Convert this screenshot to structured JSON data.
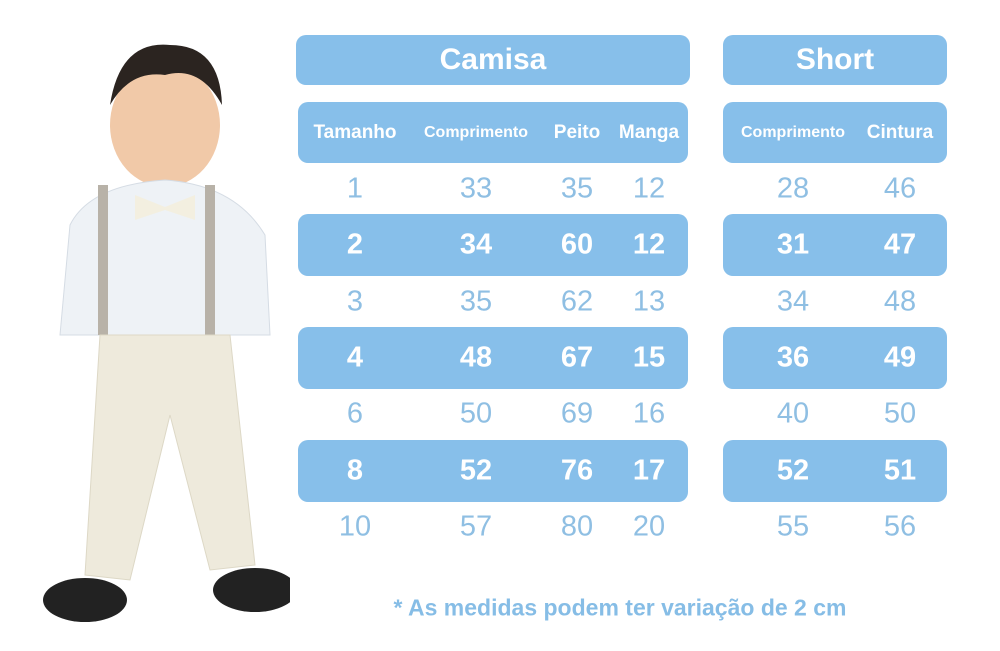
{
  "colors": {
    "accent": "#87bfea",
    "text_light": "#8fbfe3",
    "white": "#ffffff"
  },
  "camisa": {
    "title": "Camisa",
    "headers": [
      "Tamanho",
      "Comprimento",
      "Peito",
      "Manga"
    ],
    "rows": [
      [
        "1",
        "33",
        "35",
        "12"
      ],
      [
        "2",
        "34",
        "60",
        "12"
      ],
      [
        "3",
        "35",
        "62",
        "13"
      ],
      [
        "4",
        "48",
        "67",
        "15"
      ],
      [
        "6",
        "50",
        "69",
        "16"
      ],
      [
        "8",
        "52",
        "76",
        "17"
      ],
      [
        "10",
        "57",
        "80",
        "20"
      ]
    ]
  },
  "short": {
    "title": "Short",
    "headers": [
      "Comprimento",
      "Cintura"
    ],
    "rows": [
      [
        "28",
        "46"
      ],
      [
        "31",
        "47"
      ],
      [
        "34",
        "48"
      ],
      [
        "36",
        "49"
      ],
      [
        "40",
        "50"
      ],
      [
        "52",
        "51"
      ],
      [
        "55",
        "56"
      ]
    ]
  },
  "note": "* As medidas podem ter variação de 2 cm"
}
